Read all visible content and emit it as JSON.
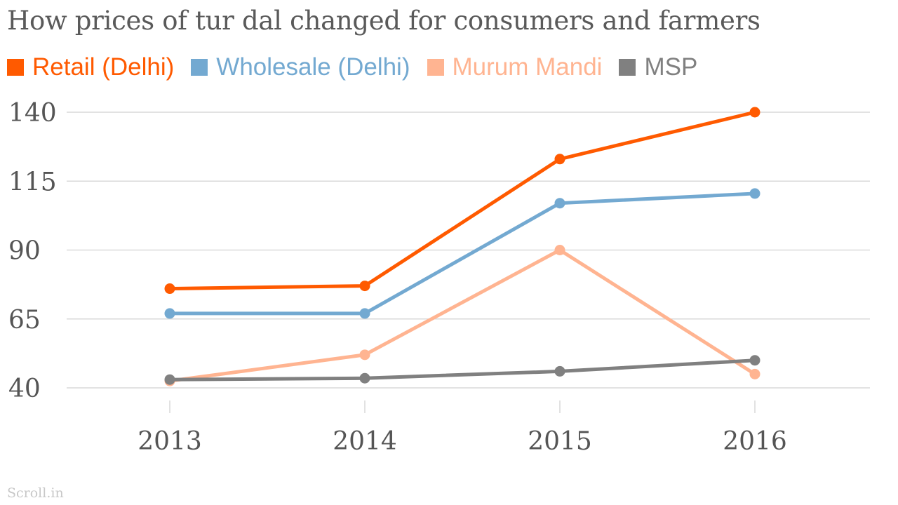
{
  "chart_data": {
    "type": "line",
    "title": "How prices of tur dal changed for consumers and farmers",
    "categories": [
      "2013",
      "2014",
      "2015",
      "2016"
    ],
    "ylim": [
      40,
      140
    ],
    "yticks": [
      140,
      115,
      90,
      65,
      40
    ],
    "xlabel": "",
    "ylabel": "",
    "legend_position": "top-left",
    "grid": true,
    "series": [
      {
        "name": "Retail (Delhi)",
        "color": "#ff5a00",
        "values": [
          76,
          77,
          123,
          140
        ]
      },
      {
        "name": "Wholesale (Delhi)",
        "color": "#73a9d1",
        "values": [
          67,
          67,
          107,
          110.5
        ]
      },
      {
        "name": "Murum Mandi",
        "color": "#ffb491",
        "values": [
          42.5,
          52,
          90,
          45
        ]
      },
      {
        "name": "MSP",
        "color": "#808080",
        "values": [
          43,
          43.5,
          46,
          50
        ]
      }
    ]
  },
  "source": "Scroll.in"
}
